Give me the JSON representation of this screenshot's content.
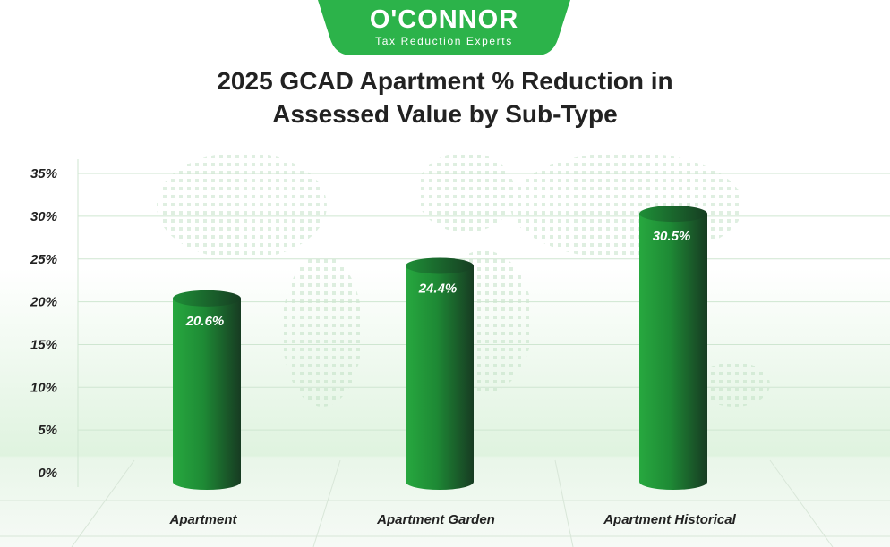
{
  "logo": {
    "name": "O'CONNOR",
    "tagline": "Tax Reduction Experts"
  },
  "colors": {
    "brand_green": "#2cb34a",
    "bar_light": "#27a83f",
    "bar_dark": "#173b22",
    "grid": "#cfe6d1"
  },
  "chart_data": {
    "type": "bar",
    "title": "2025 GCAD Apartment % Reduction in Assessed Value by Sub-Type",
    "categories": [
      "Apartment",
      "Apartment Garden",
      "Apartment Historical"
    ],
    "values": [
      20.6,
      24.4,
      30.5
    ],
    "value_labels": [
      "20.6%",
      "24.4%",
      "30.5%"
    ],
    "ylim": [
      0,
      35
    ],
    "yticks": [
      0,
      5,
      10,
      15,
      20,
      25,
      30,
      35
    ],
    "ytick_labels": [
      "0%",
      "5%",
      "10%",
      "15%",
      "20%",
      "25%",
      "30%",
      "35%"
    ],
    "grid": true,
    "xlabel": "",
    "ylabel": ""
  }
}
